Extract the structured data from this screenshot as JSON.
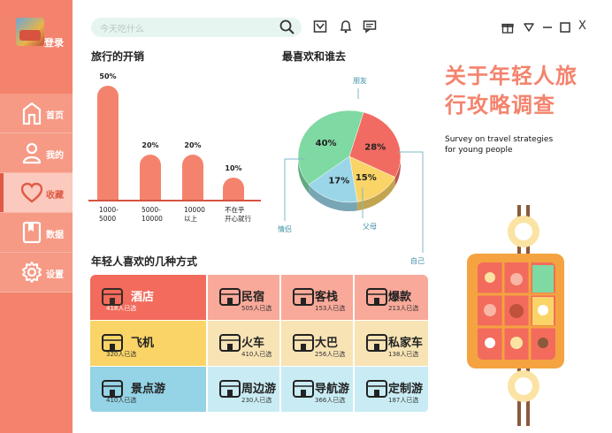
{
  "sidebar": {
    "login": "登录",
    "items": [
      {
        "label": "首页",
        "icon": "home-icon"
      },
      {
        "label": "我的",
        "icon": "user-icon"
      },
      {
        "label": "收藏",
        "icon": "heart-icon"
      },
      {
        "label": "数据",
        "icon": "data-icon"
      },
      {
        "label": "设置",
        "icon": "gear-icon"
      }
    ]
  },
  "search": {
    "placeholder": "今天吃什么"
  },
  "toolbar_icons": [
    "search-icon",
    "inbox-icon",
    "bell-icon",
    "message-icon"
  ],
  "window_icons": [
    "gift-icon",
    "dropdown-icon",
    "minimize-icon",
    "maximize-icon",
    "close-icon"
  ],
  "window": {
    "close": "X"
  },
  "bar_section": {
    "title": "旅行的开销"
  },
  "pie_section": {
    "title": "最喜欢和谁去"
  },
  "headline": {
    "title": "关于年轻人旅行攻略调查",
    "line1": "关于年轻人旅",
    "line2": "行攻略调查",
    "subtitle_line1": "Survey on travel strategies",
    "subtitle_line2": "for young people"
  },
  "grid_section": {
    "title": "年轻人喜欢的几种方式"
  },
  "chart_data": [
    {
      "type": "bar",
      "title": "旅行的开销",
      "categories": [
        "1000-\n5000",
        "5000-\n10000",
        "10000\n以上",
        "不在乎\n开心就行"
      ],
      "category_lines": [
        [
          "1000-",
          "5000"
        ],
        [
          "5000-",
          "10000"
        ],
        [
          "10000",
          "以上"
        ],
        [
          "不在乎",
          "开心就行"
        ]
      ],
      "values": [
        50,
        20,
        20,
        10
      ],
      "labels": [
        "50%",
        "20%",
        "20%",
        "10%"
      ],
      "ylim": [
        0,
        50
      ],
      "color": "#f4836d"
    },
    {
      "type": "pie",
      "title": "最喜欢和谁去",
      "slices": [
        {
          "name": "朋友",
          "value": 28,
          "label": "28%",
          "color": "#f26b62"
        },
        {
          "name": "自己",
          "value": 15,
          "label": "15%",
          "color": "#fbd467"
        },
        {
          "name": "父母",
          "value": 17,
          "label": "17%",
          "color": "#9ad6e8"
        },
        {
          "name": "情侣",
          "value": 40,
          "label": "40%",
          "color": "#7ed9a3"
        }
      ]
    }
  ],
  "grid": [
    {
      "name": "酒店",
      "count": "418人已选",
      "icon": "hotel-icon",
      "color": "#f26b5c"
    },
    {
      "name": "民宿",
      "count": "505人已选",
      "icon": "homestay-icon",
      "color": "#f9a999"
    },
    {
      "name": "客栈",
      "count": "153人已选",
      "icon": "inn-icon",
      "color": "#f9a999"
    },
    {
      "name": "爆款",
      "count": "213人已选",
      "icon": "hot-icon",
      "color": "#f9a999"
    },
    {
      "name": "飞机",
      "count": "320人已选",
      "icon": "plane-icon",
      "color": "#fbd467"
    },
    {
      "name": "火车",
      "count": "410人已选",
      "icon": "train-icon",
      "color": "#f7e3b4"
    },
    {
      "name": "大巴",
      "count": "256人已选",
      "icon": "bus-icon",
      "color": "#f7e3b4"
    },
    {
      "name": "私家车",
      "count": "138人已选",
      "icon": "car-icon",
      "color": "#f7e3b4"
    },
    {
      "name": "景点游",
      "count": "410人已选",
      "icon": "palm-icon",
      "color": "#95d3e6"
    },
    {
      "name": "周边游",
      "count": "230人已选",
      "icon": "map-icon",
      "color": "#c9ecf4"
    },
    {
      "name": "导航游",
      "count": "366人已选",
      "icon": "route-icon",
      "color": "#c9ecf4"
    },
    {
      "name": "定制游",
      "count": "187人已选",
      "icon": "book-icon",
      "color": "#c9ecf4"
    }
  ]
}
